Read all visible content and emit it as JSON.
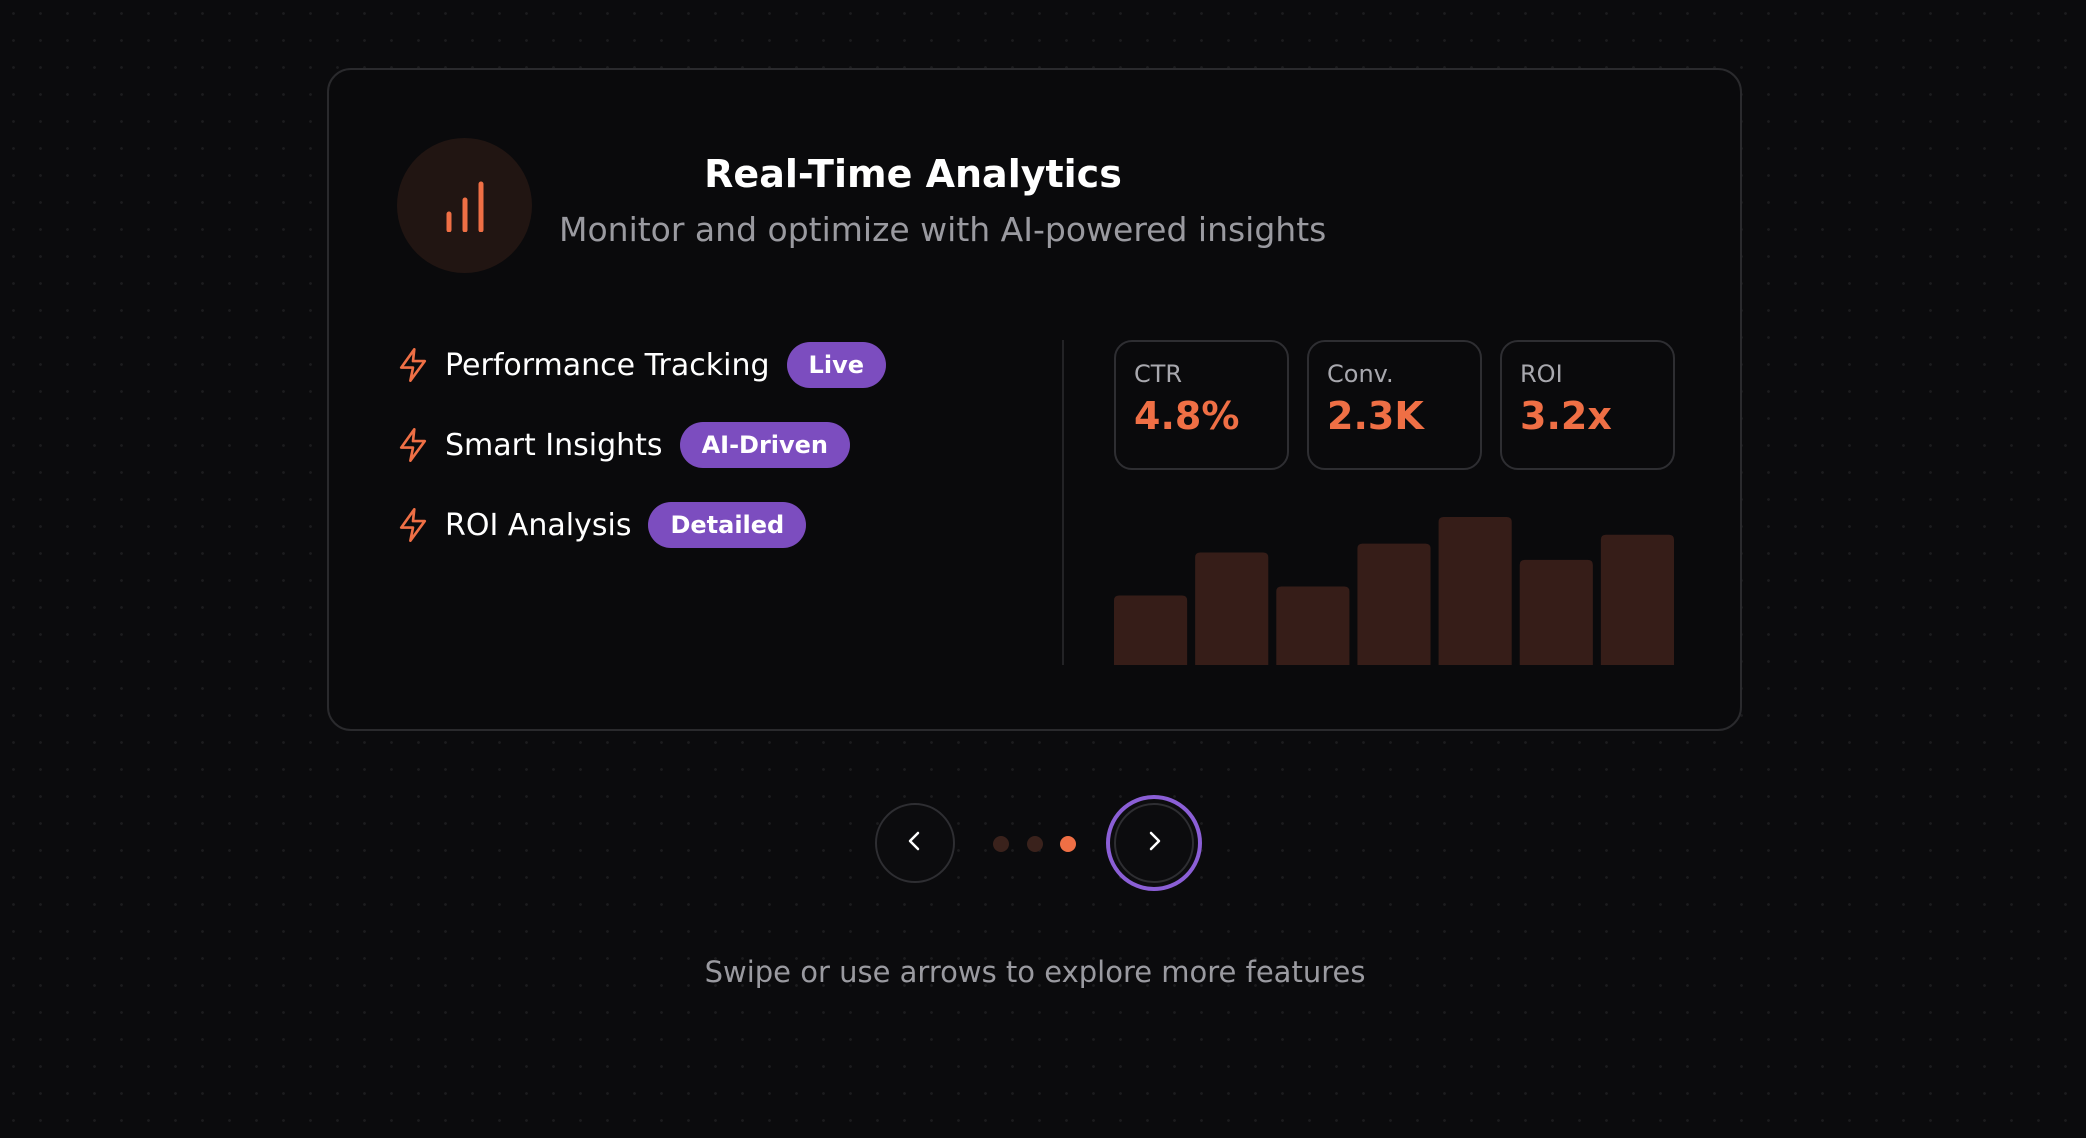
{
  "card": {
    "title": "Real-Time Analytics",
    "subtitle": "Monitor and optimize with AI-powered insights",
    "icon": "bar-chart-icon",
    "features": [
      {
        "label": "Performance Tracking",
        "badge": "Live",
        "icon": "lightning-icon"
      },
      {
        "label": "Smart Insights",
        "badge": "AI-Driven",
        "icon": "lightning-icon"
      },
      {
        "label": "ROI Analysis",
        "badge": "Detailed",
        "icon": "lightning-icon"
      }
    ],
    "metrics": [
      {
        "label": "CTR",
        "value": "4.8%"
      },
      {
        "label": "Conv.",
        "value": "2.3K"
      },
      {
        "label": "ROI",
        "value": "3.2x"
      }
    ]
  },
  "chart_data": {
    "type": "bar",
    "values": [
      0.47,
      0.76,
      0.53,
      0.82,
      1.0,
      0.71,
      0.88
    ],
    "ylim": [
      0,
      1
    ]
  },
  "carousel": {
    "slide_count": 3,
    "active_index": 2,
    "prev_icon": "chevron-left-icon",
    "next_icon": "chevron-right-icon"
  },
  "hint": "Swipe or use arrows to explore more features",
  "colors": {
    "accent": "#ef6f45",
    "badge": "#7c4dbf",
    "bar": "#361d18",
    "focus_ring": "#8b5fd6",
    "background": "#0b0b0d"
  }
}
